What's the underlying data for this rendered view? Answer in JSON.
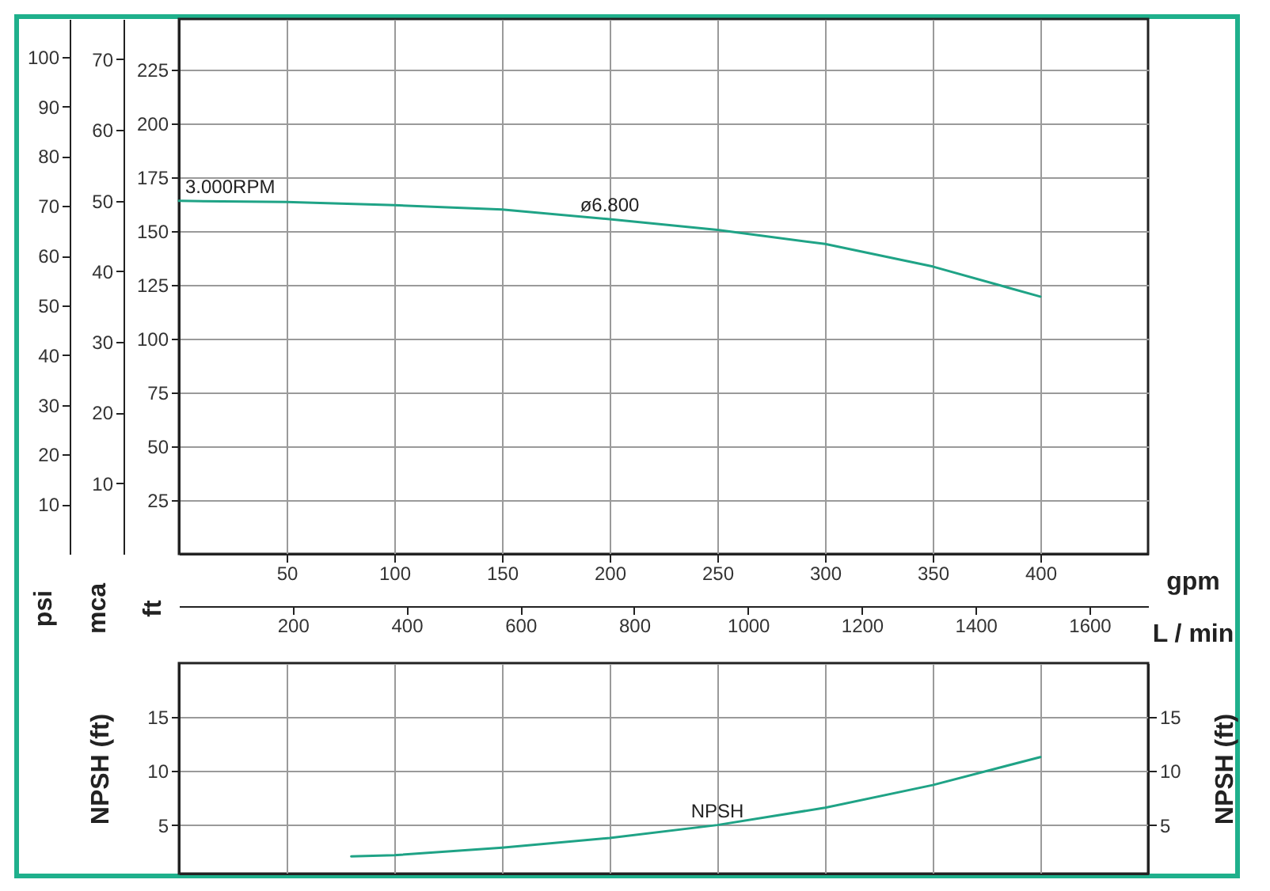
{
  "chart_data": [
    {
      "type": "line",
      "xlabel": "gpm",
      "xlim": [
        0,
        450
      ],
      "xticks": [
        50,
        100,
        150,
        200,
        250,
        300,
        350,
        400
      ],
      "x2label": "L / min",
      "x2lim": [
        0,
        1703
      ],
      "x2ticks": [
        200,
        400,
        600,
        800,
        1000,
        1200,
        1400,
        1600
      ],
      "ylabel": "ft",
      "ylim": [
        0,
        248.5
      ],
      "yticks": [
        25,
        50,
        75,
        100,
        125,
        150,
        175,
        200,
        225
      ],
      "y2label": "mca",
      "y2lim": [
        0,
        75.7
      ],
      "y2ticks": [
        10,
        20,
        30,
        40,
        50,
        60,
        70
      ],
      "y3label": "psi",
      "y3lim": [
        0,
        107.6
      ],
      "y3ticks": [
        10,
        20,
        30,
        40,
        50,
        60,
        70,
        80,
        90,
        100
      ],
      "grid": true,
      "annotations": [
        {
          "text": "3.000RPM",
          "x": 0,
          "y": 164
        }
      ],
      "x": [
        0,
        50,
        100,
        150,
        200,
        250,
        300,
        350,
        400
      ],
      "series": [
        {
          "name": "ø6.800",
          "color": "#1fa386",
          "values": [
            164,
            163.5,
            162,
            160,
            155.5,
            150.5,
            144,
            133.5,
            119.5
          ]
        }
      ]
    },
    {
      "type": "line",
      "xlim": [
        0,
        450
      ],
      "xticks": [
        50,
        100,
        150,
        200,
        250,
        300,
        350,
        400
      ],
      "ylabel": "NPSH (ft)",
      "ylim": [
        0.5,
        20
      ],
      "yticks": [
        5,
        10,
        15
      ],
      "y2label": "NPSH (ft)",
      "y2lim": [
        0.5,
        20
      ],
      "y2ticks": [
        5,
        10,
        15
      ],
      "tick_labels": "y",
      "grid": true,
      "x": [
        80,
        100,
        150,
        200,
        250,
        300,
        350,
        400
      ],
      "series": [
        {
          "name": "NPSH",
          "color": "#1fa386",
          "values": [
            2.1,
            2.2,
            2.9,
            3.8,
            5.0,
            6.6,
            8.7,
            11.3
          ]
        }
      ]
    }
  ]
}
